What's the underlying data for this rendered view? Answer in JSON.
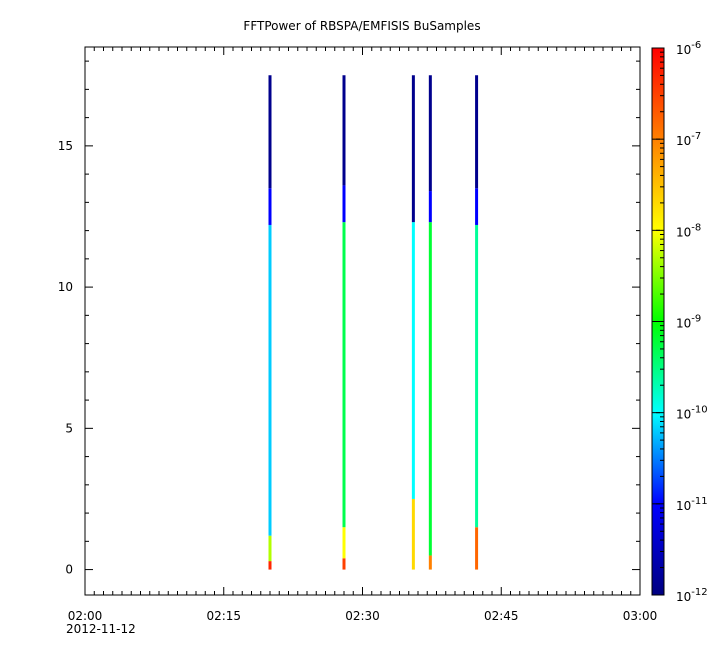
{
  "chart_data": {
    "type": "heatmap",
    "title": "FFTPower of RBSPA/EMFISIS  BuSamples",
    "xlabel": "",
    "ylabel": "",
    "x_tick_labels": [
      "02:00",
      "02:15",
      "02:30",
      "02:45",
      "03:00"
    ],
    "x_date_label": "2012-11-12",
    "x_range": [
      "02:00",
      "03:00"
    ],
    "y_ticks": [
      0,
      5,
      10,
      15
    ],
    "y_tick_labels": [
      "0",
      "5",
      "10",
      "15"
    ],
    "ylim": [
      -0.9,
      18.5
    ],
    "colorbar": {
      "scale": "log",
      "range": [
        1e-12,
        1e-06
      ],
      "tick_labels": [
        {
          "base": "10",
          "exp": "-12"
        },
        {
          "base": "10",
          "exp": "-11"
        },
        {
          "base": "10",
          "exp": "-10"
        },
        {
          "base": "10",
          "exp": "-9"
        },
        {
          "base": "10",
          "exp": "-8"
        },
        {
          "base": "10",
          "exp": "-7"
        },
        {
          "base": "10",
          "exp": "-6"
        }
      ],
      "colormap": [
        "#000080",
        "#0000ff",
        "#00ffff",
        "#00ff00",
        "#ffff00",
        "#ff8000",
        "#ff0000"
      ]
    },
    "series": [
      {
        "time": "02:20:00",
        "y_max": 17.5,
        "segments": [
          {
            "y0": 0.0,
            "y1": 0.3,
            "log_power": -6.3
          },
          {
            "y0": 0.3,
            "y1": 1.2,
            "log_power": -8.3
          },
          {
            "y0": 1.2,
            "y1": 12.2,
            "log_power": -10.2
          },
          {
            "y0": 12.2,
            "y1": 13.5,
            "log_power": -11.0
          },
          {
            "y0": 13.5,
            "y1": 17.5,
            "log_power": -11.9
          }
        ]
      },
      {
        "time": "02:28:00",
        "y_max": 17.5,
        "segments": [
          {
            "y0": 0.0,
            "y1": 0.4,
            "log_power": -6.5
          },
          {
            "y0": 0.4,
            "y1": 1.5,
            "log_power": -8.0
          },
          {
            "y0": 1.5,
            "y1": 12.3,
            "log_power": -9.3
          },
          {
            "y0": 12.3,
            "y1": 13.6,
            "log_power": -11.0
          },
          {
            "y0": 13.6,
            "y1": 17.5,
            "log_power": -11.9
          }
        ]
      },
      {
        "time": "02:35:30",
        "y_max": 17.5,
        "segments": [
          {
            "y0": 0.0,
            "y1": 2.5,
            "log_power": -7.7
          },
          {
            "y0": 2.5,
            "y1": 12.3,
            "log_power": -10.0
          },
          {
            "y0": 12.3,
            "y1": 17.5,
            "log_power": -11.9
          }
        ]
      },
      {
        "time": "02:37:20",
        "y_max": 17.5,
        "segments": [
          {
            "y0": 0.0,
            "y1": 0.5,
            "log_power": -7.0
          },
          {
            "y0": 0.5,
            "y1": 12.3,
            "log_power": -9.2
          },
          {
            "y0": 12.3,
            "y1": 13.4,
            "log_power": -11.0
          },
          {
            "y0": 13.4,
            "y1": 17.5,
            "log_power": -11.9
          }
        ]
      },
      {
        "time": "02:42:20",
        "y_max": 17.5,
        "segments": [
          {
            "y0": 0.0,
            "y1": 1.5,
            "log_power": -6.8
          },
          {
            "y0": 1.5,
            "y1": 12.2,
            "log_power": -9.6
          },
          {
            "y0": 12.2,
            "y1": 13.5,
            "log_power": -11.0
          },
          {
            "y0": 13.5,
            "y1": 17.5,
            "log_power": -11.9
          }
        ]
      }
    ]
  }
}
